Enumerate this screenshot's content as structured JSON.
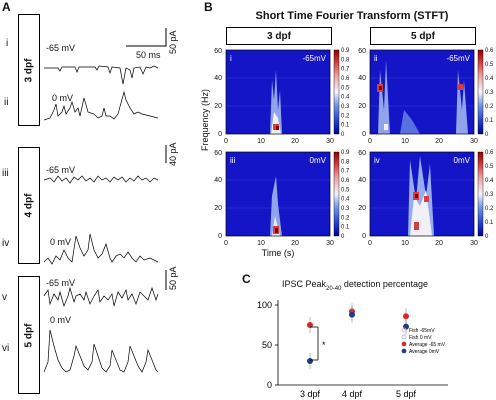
{
  "panelA": {
    "label": "A",
    "roman": [
      "i",
      "ii",
      "iii",
      "iv",
      "v",
      "vi"
    ],
    "groups": [
      "3 dpf",
      "4 dpf",
      "5 dpf"
    ],
    "voltages": [
      "-65 mV",
      "0 mV",
      "-65 mV",
      "0 mV",
      "-65 mV",
      "0 mV"
    ],
    "scalebars": {
      "amp1": "50 pA",
      "time": "50 ms",
      "amp2": "40 pA",
      "amp3": "50 pA"
    }
  },
  "panelB": {
    "label": "B",
    "title": "Short Time Fourier Transform (STFT)",
    "headers": [
      "3 dpf",
      "5 dpf"
    ],
    "subpanels": [
      {
        "roman": "i",
        "voltage": "-65mV"
      },
      {
        "roman": "ii",
        "voltage": "-65mV"
      },
      {
        "roman": "iii",
        "voltage": "0mV"
      },
      {
        "roman": "iv",
        "voltage": "0mV"
      }
    ],
    "ylabel": "Frequency (Hz)",
    "xlabel": "Time (s)",
    "yticks": [
      "0",
      "20",
      "40",
      "60"
    ],
    "xticks": [
      "0",
      "10",
      "20",
      "30"
    ],
    "colorbar_left": [
      "0",
      "0.1",
      "0.2",
      "0.3",
      "0.4",
      "0.5",
      "0.6",
      "0.7",
      "0.8",
      "0.9"
    ],
    "colorbar_right": [
      "0",
      "0.1",
      "0.2",
      "0.3",
      "0.4",
      "0.5",
      "0.6"
    ]
  },
  "panelC": {
    "label": "C",
    "title_pre": "IPSC Peak",
    "title_sub": "20-40",
    "title_post": " detection percentage",
    "yticks": [
      "0",
      "50",
      "100"
    ],
    "significance": "*",
    "legend": [
      "Fish -65mV",
      "Fish 0 mV",
      "Average -65 mV",
      "Average 0mV"
    ],
    "colors": {
      "red": "#d62728",
      "blue": "#1f3c88",
      "open_red": "#e8a0a0",
      "open_blue": "#8fa8d8"
    }
  },
  "chart_data": {
    "type": "scatter",
    "categories": [
      "3 dpf",
      "4 dpf",
      "5 dpf"
    ],
    "ylim": [
      0,
      100
    ],
    "series": [
      {
        "name": "Average -65 mV",
        "values": [
          75,
          92,
          86
        ]
      },
      {
        "name": "Average 0mV",
        "values": [
          30,
          88,
          73
        ]
      }
    ]
  }
}
